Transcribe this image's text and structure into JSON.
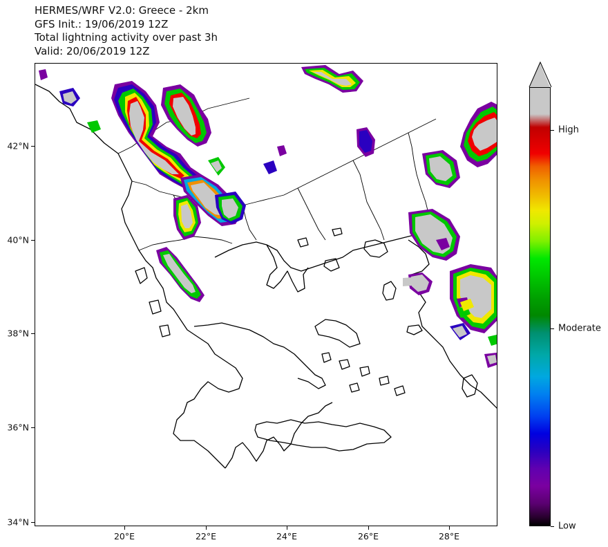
{
  "title": {
    "line1": "HERMES/WRF V2.0: Greece - 2km",
    "line2": "GFS Init.: 19/06/2019 12Z",
    "line3": "Total lightning activity over past 3h",
    "line4": "Valid: 20/06/2019 12Z"
  },
  "map": {
    "lon_range": [
      18.0,
      29.4
    ],
    "lat_range": [
      34.0,
      43.9
    ],
    "y_ticks": [
      "42°N",
      "40°N",
      "38°N",
      "36°N",
      "34°N"
    ],
    "x_ticks": [
      "20°E",
      "22°E",
      "24°E",
      "26°E",
      "28°E"
    ],
    "land_fill": "#ffffff",
    "coast_color": "#000000",
    "no_data_fill": "#c8c8c8"
  },
  "colorbar": {
    "labels": [
      "High",
      "Moderate",
      "Low"
    ],
    "extend": "max"
  },
  "palette": [
    "#c8c8c8",
    "#c00000",
    "#f00000",
    "#f09000",
    "#f0e800",
    "#80f000",
    "#00c800",
    "#009070",
    "#00a8e0",
    "#0040f0",
    "#2a00c0",
    "#7a00a0"
  ]
}
